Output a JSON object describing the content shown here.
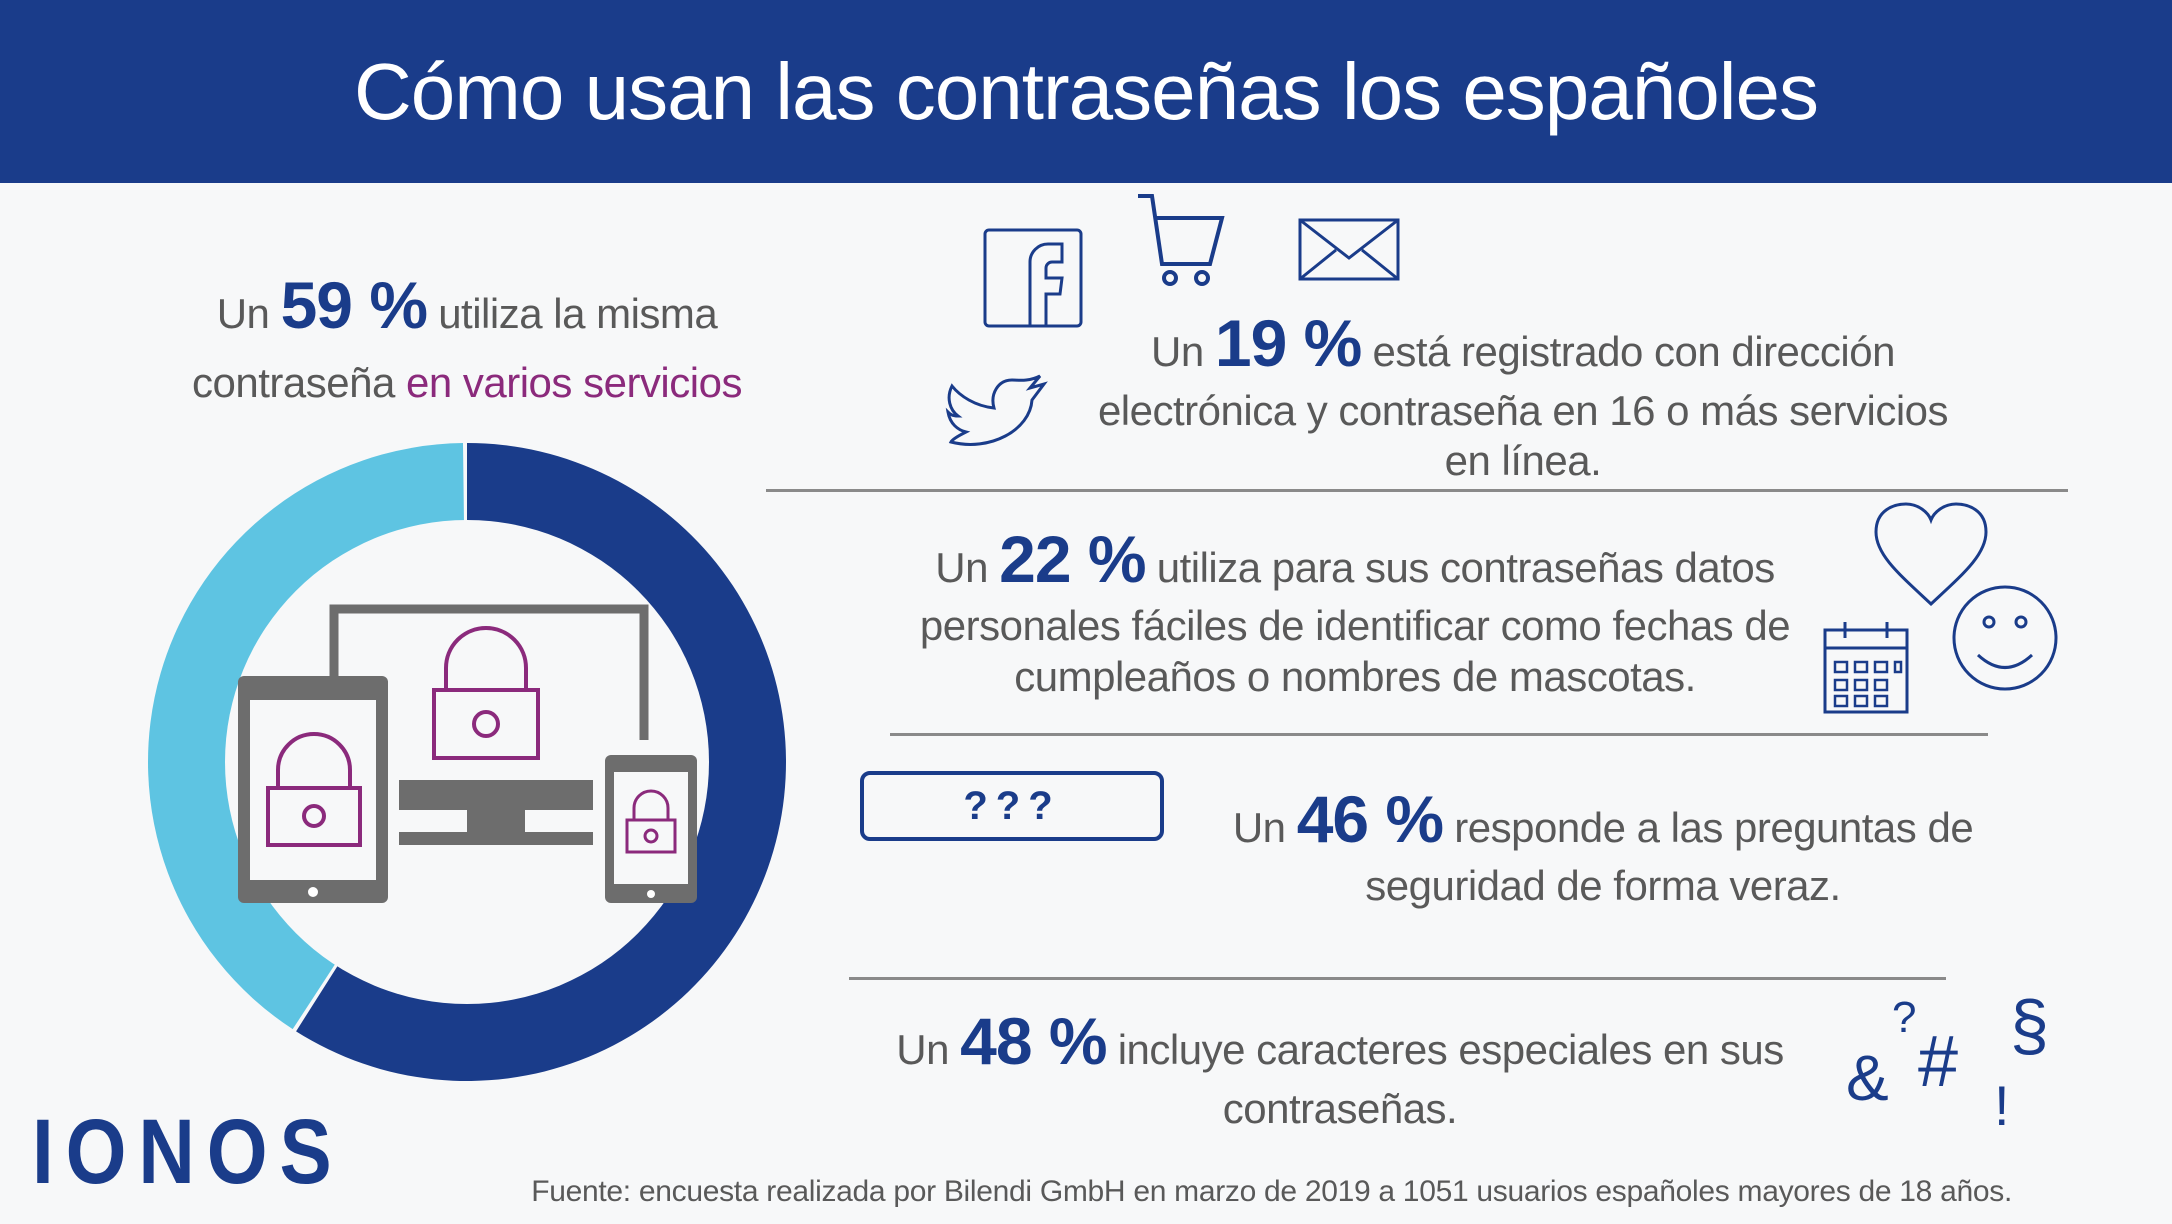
{
  "header": {
    "title": "Cómo usan las contraseñas los españoles"
  },
  "colors": {
    "brand": "#1a3c8a",
    "accent_light": "#5ec4e2",
    "highlight": "#8b2a7c",
    "text": "#595959"
  },
  "stat_same_password": {
    "prefix": "Un",
    "percent": "59 %",
    "value": 59,
    "line1_rest": "utiliza la misma",
    "line2_plain": "contraseña",
    "line2_highlight": "en varios servicios"
  },
  "donut": {
    "value": 59,
    "rest": 41
  },
  "stat_registered": {
    "prefix": "Un",
    "percent": "19 %",
    "line1_rest": "está registrado con dirección",
    "line2": "electrónica y contraseña en 16 o más servicios",
    "line3": "en línea.",
    "icons": [
      "facebook-icon",
      "cart-icon",
      "envelope-icon",
      "twitter-icon"
    ]
  },
  "stat_personal_data": {
    "prefix": "Un",
    "percent": "22 %",
    "line1_rest": "utiliza para sus contraseñas datos",
    "line2": "personales fáciles de identificar como fechas de",
    "line3": "cumpleaños o nombres de mascotas.",
    "icons": [
      "heart-icon",
      "smiley-icon",
      "calendar-icon"
    ]
  },
  "stat_security_questions": {
    "box_text": "???",
    "prefix": "Un",
    "percent": "46 %",
    "line1_rest": "responde a las preguntas de",
    "line2": "seguridad de forma veraz."
  },
  "stat_special_chars": {
    "prefix": "Un",
    "percent": "48 %",
    "line1_rest": "incluye caracteres especiales en sus",
    "line2": "contraseñas.",
    "symbols": [
      "&",
      "?",
      "#",
      "!",
      "§"
    ]
  },
  "logo": "IONOS",
  "footer": {
    "source": "Fuente: encuesta realizada por Bilendi GmbH en marzo de 2019 a 1051 usuarios españoles mayores de 18 años."
  }
}
